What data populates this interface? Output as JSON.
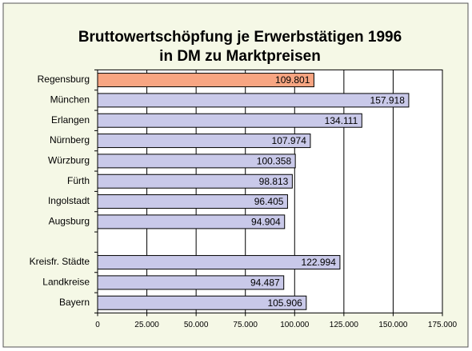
{
  "chart_data": {
    "type": "hbar",
    "title_lines": [
      "Bruttowertschöpfung je Erwerbstätigen 1996",
      "in DM zu Marktpreisen"
    ],
    "categories": [
      "Regensburg",
      "München",
      "Erlangen",
      "Nürnberg",
      "Würzburg",
      "Fürth",
      "Ingolstadt",
      "Augsburg",
      null,
      "Kreisfr. Städte",
      "Landkreise",
      "Bayern"
    ],
    "values": [
      109801,
      157918,
      134111,
      107974,
      100358,
      98813,
      96405,
      94904,
      null,
      122994,
      94487,
      105906
    ],
    "value_labels": [
      "109.801",
      "157.918",
      "134.111",
      "107.974",
      "100.358",
      "98.813",
      "96.405",
      "94.904",
      null,
      "122.994",
      "94.487",
      "105.906"
    ],
    "colors": [
      "#f7a582",
      "#c9c9e9",
      "#c9c9e9",
      "#c9c9e9",
      "#c9c9e9",
      "#c9c9e9",
      "#c9c9e9",
      "#c9c9e9",
      null,
      "#c9c9e9",
      "#c9c9e9",
      "#c9c9e9"
    ],
    "xlim": [
      0,
      175000
    ],
    "xticks": [
      0,
      {
        "value": 25000,
        "label": "25.000"
      },
      {
        "value": 50000,
        "label": "50.000"
      },
      {
        "value": 75000,
        "label": "75.000"
      },
      {
        "value": 100000,
        "label": "100.000"
      },
      {
        "value": 125000,
        "label": "125.000"
      },
      {
        "value": 150000,
        "label": "150.000"
      },
      {
        "value": 175000,
        "label": "175.000"
      }
    ],
    "grid": true
  }
}
